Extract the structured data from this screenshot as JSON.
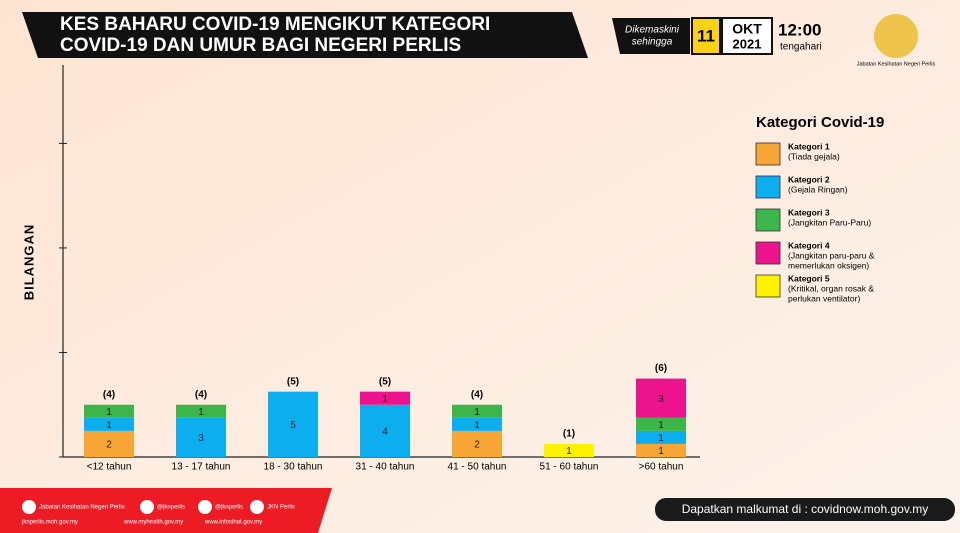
{
  "header": {
    "title_lines": [
      "KES BAHARU COVID-19 MENGIKUT KATEGORI",
      "COVID-19 DAN UMUR BAGI NEGERI PERLIS"
    ],
    "updated_lines": [
      "Dikemaskini",
      "sehingga"
    ],
    "day": "11",
    "month": "OKT",
    "year": "2021",
    "time": "12:00",
    "time_note": "tengahari",
    "logo_text": "Jabatan Kesihatan Negeri Perlis"
  },
  "chart_data": {
    "type": "stacked_bar",
    "y_label": "BILANGAN",
    "categories": [
      "<12 tahun",
      "13 - 17 tahun",
      "18 - 30 tahun",
      "31 - 40 tahun",
      "41 - 50 tahun",
      "51 - 60 tahun",
      ">60 tahun"
    ],
    "series": [
      {
        "name": "Kategori 1",
        "description": [
          "(Tiada gejala)"
        ],
        "color": "#f7a535",
        "values": [
          2,
          0,
          0,
          0,
          2,
          0,
          1
        ]
      },
      {
        "name": "Kategori 2",
        "description": [
          "(Gejala Ringan)"
        ],
        "color": "#0daeef",
        "values": [
          1,
          3,
          5,
          4,
          1,
          0,
          1
        ]
      },
      {
        "name": "Kategori 3",
        "description": [
          "(Jangkitan Paru-Paru)"
        ],
        "color": "#3cb64a",
        "values": [
          1,
          1,
          0,
          0,
          1,
          0,
          1
        ]
      },
      {
        "name": "Kategori 4",
        "description": [
          "(Jangkitan paru-paru &",
          "memerlukan oksigen)"
        ],
        "color": "#ec138c",
        "values": [
          0,
          0,
          0,
          1,
          0,
          0,
          3
        ]
      },
      {
        "name": "Kategori 5",
        "description": [
          "(Kritikal, organ rosak &",
          "perlukan ventilator)"
        ],
        "color": "#fff200",
        "values": [
          0,
          0,
          0,
          0,
          0,
          1,
          0
        ]
      }
    ],
    "totals": {
      "values": [
        4,
        4,
        5,
        5,
        4,
        1,
        6
      ],
      "value_labels": [
        "(4)",
        "(4)",
        "(5)",
        "(5)",
        "(4)",
        "(1)",
        "(6)"
      ]
    },
    "legend_title": "Kategori Covid-19",
    "ylim": [
      0,
      30
    ],
    "yticks": [
      0,
      8,
      16,
      24
    ]
  },
  "footer": {
    "social": [
      "Jabatan Kesihatan Negeri Perlis",
      "@jknperlis",
      "@jknperlis",
      "JKN Perlis"
    ],
    "sites": [
      "jknperlis.moh.gov.my",
      "www.myhealth.gov.my",
      "www.infosihat.gov.my"
    ],
    "info": "Dapatkan malkumat di : covidnow.moh.gov.my"
  }
}
